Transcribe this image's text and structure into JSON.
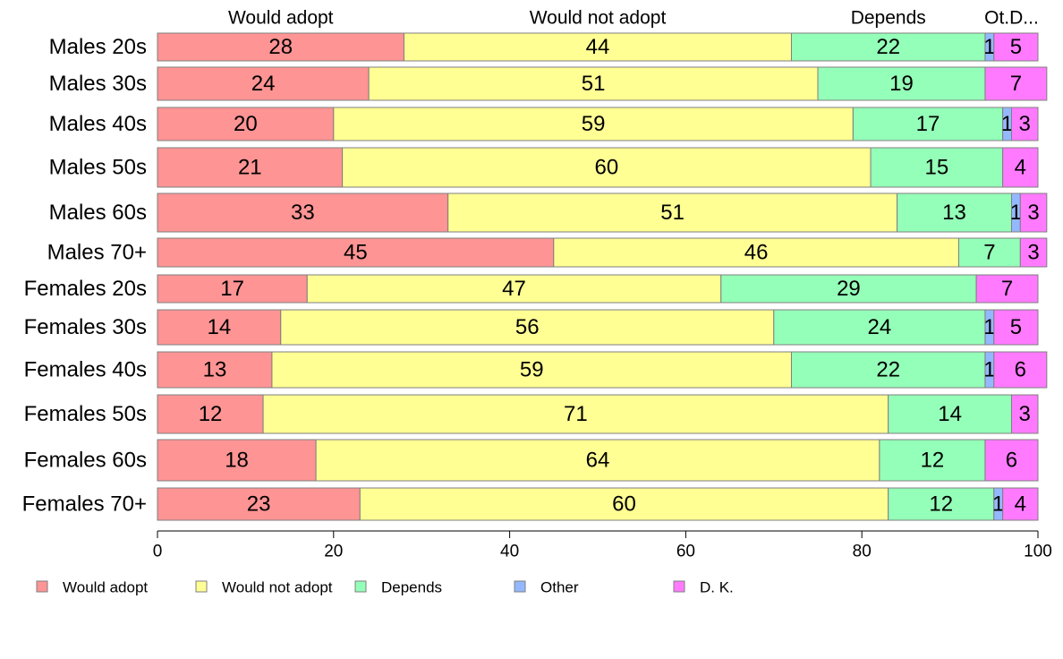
{
  "chart_data": {
    "type": "bar",
    "orientation": "horizontal",
    "stacked": true,
    "categories": [
      "Males 20s",
      "Males 30s",
      "Males 40s",
      "Males 50s",
      "Males 60s",
      "Males 70+",
      "Females 20s",
      "Females 30s",
      "Females 40s",
      "Females 50s",
      "Females 60s",
      "Females 70+"
    ],
    "series": [
      {
        "name": "Would adopt",
        "color": "#ff9494",
        "values": [
          28,
          24,
          20,
          21,
          33,
          45,
          17,
          14,
          13,
          12,
          18,
          23
        ]
      },
      {
        "name": "Would not adopt",
        "color": "#ffff94",
        "values": [
          44,
          51,
          59,
          60,
          51,
          46,
          47,
          56,
          59,
          71,
          64,
          60
        ]
      },
      {
        "name": "Depends",
        "color": "#94ffb8",
        "values": [
          22,
          19,
          17,
          15,
          13,
          7,
          29,
          24,
          22,
          14,
          12,
          12
        ]
      },
      {
        "name": "Other",
        "color": "#94b8ff",
        "values": [
          1,
          0,
          1,
          0,
          1,
          0,
          0,
          1,
          1,
          0,
          0,
          1
        ]
      },
      {
        "name": "D. K.",
        "color": "#ff7aff",
        "values": [
          5,
          7,
          3,
          4,
          3,
          3,
          7,
          5,
          6,
          3,
          6,
          4
        ]
      }
    ],
    "top_labels": [
      "Would adopt",
      "Would not adopt",
      "Depends",
      "Ot.D..."
    ],
    "xlim": [
      0,
      100
    ],
    "xticks": [
      0,
      20,
      40,
      60,
      80,
      100
    ],
    "title": "",
    "xlabel": "",
    "ylabel": "",
    "grid": false,
    "legend_position": "bottom"
  }
}
